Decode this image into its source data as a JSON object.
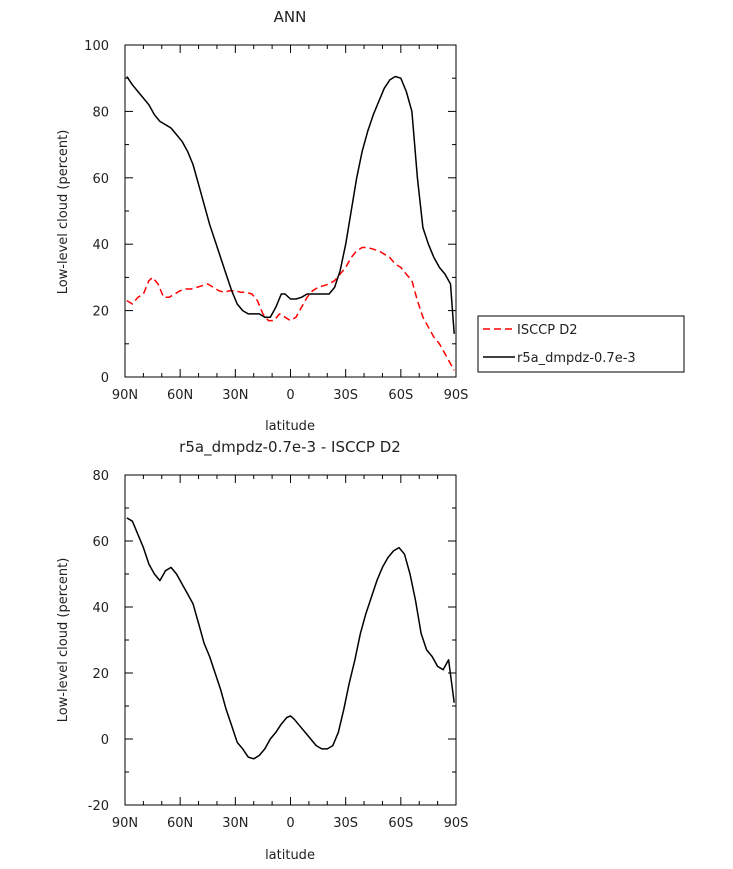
{
  "chart_data": [
    {
      "type": "line",
      "title": "ANN",
      "xlabel": "latitude",
      "ylabel": "Low-level cloud (percent)",
      "x_ticks": [
        "90N",
        "60N",
        "30N",
        "0",
        "30S",
        "60S",
        "90S"
      ],
      "x_tick_values": [
        -90,
        -60,
        -30,
        0,
        30,
        60,
        90
      ],
      "xlim": [
        -90,
        90
      ],
      "ylim": [
        0,
        100
      ],
      "y_ticks": [
        0,
        20,
        40,
        60,
        80,
        100
      ],
      "grid": false,
      "legend_position": "right",
      "series": [
        {
          "name": "ISCCP D2",
          "color": "#ff0000",
          "dash": "dashed",
          "x": [
            -89,
            -86,
            -83,
            -80,
            -77,
            -75,
            -72,
            -69,
            -66,
            -63,
            -60,
            -57,
            -54,
            -51,
            -48,
            -45,
            -42,
            -39,
            -36,
            -33,
            -30,
            -27,
            -24,
            -21,
            -18,
            -15,
            -12,
            -9,
            -6,
            -3,
            0,
            3,
            6,
            9,
            12,
            15,
            18,
            21,
            24,
            27,
            30,
            33,
            36,
            39,
            42,
            45,
            48,
            51,
            54,
            57,
            60,
            63,
            66,
            69,
            72,
            75,
            78,
            81,
            84,
            87,
            89
          ],
          "y": [
            23,
            22,
            24,
            25,
            29,
            30,
            28,
            24,
            24,
            25,
            26,
            26.5,
            26.5,
            27,
            27.5,
            28,
            27,
            26,
            25.5,
            26,
            26,
            25.5,
            25.5,
            25,
            23,
            19,
            17,
            17,
            19,
            18,
            17,
            18,
            21,
            24,
            26,
            27,
            27.5,
            28,
            29,
            31,
            33,
            36,
            38,
            39,
            39,
            38.5,
            38,
            37,
            36,
            34,
            33,
            31,
            29,
            23,
            18,
            15,
            12,
            10,
            7,
            4,
            2
          ]
        },
        {
          "name": "r5a_dmpdz-0.7e-3",
          "color": "#000000",
          "dash": "solid",
          "x": [
            -89,
            -86,
            -83,
            -80,
            -77,
            -74,
            -71,
            -68,
            -65,
            -62,
            -59,
            -56,
            -53,
            -50,
            -47,
            -44,
            -41,
            -38,
            -35,
            -32,
            -29,
            -26,
            -23,
            -20,
            -17,
            -14,
            -11,
            -8,
            -5,
            -3,
            0,
            3,
            6,
            9,
            12,
            15,
            18,
            21,
            24,
            27,
            30,
            33,
            36,
            39,
            42,
            45,
            48,
            51,
            54,
            57,
            60,
            63,
            66,
            69,
            72,
            75,
            78,
            81,
            84,
            87,
            89
          ],
          "y": [
            90.5,
            88,
            86,
            84,
            82,
            79,
            77,
            76,
            75,
            73,
            71,
            68,
            64,
            58,
            52,
            46,
            41,
            36,
            31,
            26,
            22,
            20,
            19,
            19,
            19,
            18,
            18,
            21,
            25,
            25,
            23.5,
            23.5,
            24,
            25,
            25,
            25,
            25,
            25,
            27,
            32,
            40,
            50,
            60,
            68,
            74,
            79,
            83,
            87,
            89.5,
            90.5,
            90,
            86,
            80,
            60,
            45,
            40,
            36,
            33,
            31,
            28,
            13
          ]
        }
      ]
    },
    {
      "type": "line",
      "title": "r5a_dmpdz-0.7e-3 - ISCCP D2",
      "xlabel": "latitude",
      "ylabel": "Low-level cloud (percent)",
      "x_ticks": [
        "90N",
        "60N",
        "30N",
        "0",
        "30S",
        "60S",
        "90S"
      ],
      "x_tick_values": [
        -90,
        -60,
        -30,
        0,
        30,
        60,
        90
      ],
      "xlim": [
        -90,
        90
      ],
      "ylim": [
        -20,
        80
      ],
      "y_ticks": [
        -20,
        0,
        20,
        40,
        60,
        80
      ],
      "grid": false,
      "series": [
        {
          "color": "#000000",
          "dash": "solid",
          "x": [
            -89,
            -86,
            -83,
            -80,
            -77,
            -74,
            -71,
            -68,
            -65,
            -62,
            -59,
            -56,
            -53,
            -50,
            -47,
            -44,
            -41,
            -38,
            -35,
            -32,
            -29,
            -26,
            -23,
            -20,
            -17,
            -14,
            -11,
            -8,
            -5,
            -2,
            0,
            2,
            5,
            8,
            11,
            14,
            17,
            20,
            23,
            26,
            29,
            32,
            35,
            38,
            41,
            44,
            47,
            50,
            53,
            56,
            59,
            62,
            65,
            68,
            71,
            74,
            77,
            80,
            83,
            86,
            89
          ],
          "y": [
            67,
            66,
            62,
            58,
            53,
            50,
            48,
            51,
            52,
            50,
            47,
            44,
            41,
            35,
            29,
            25,
            20,
            15,
            9,
            4,
            -1,
            -3,
            -5.5,
            -6,
            -5,
            -3,
            0,
            2,
            4.5,
            6.5,
            7,
            6,
            4,
            2,
            0,
            -2,
            -3,
            -3,
            -2,
            2,
            9,
            17,
            24,
            32,
            38,
            43,
            48,
            52,
            55,
            57,
            58,
            56,
            50,
            42,
            32,
            27,
            25,
            22,
            21,
            24,
            11
          ]
        }
      ]
    }
  ]
}
